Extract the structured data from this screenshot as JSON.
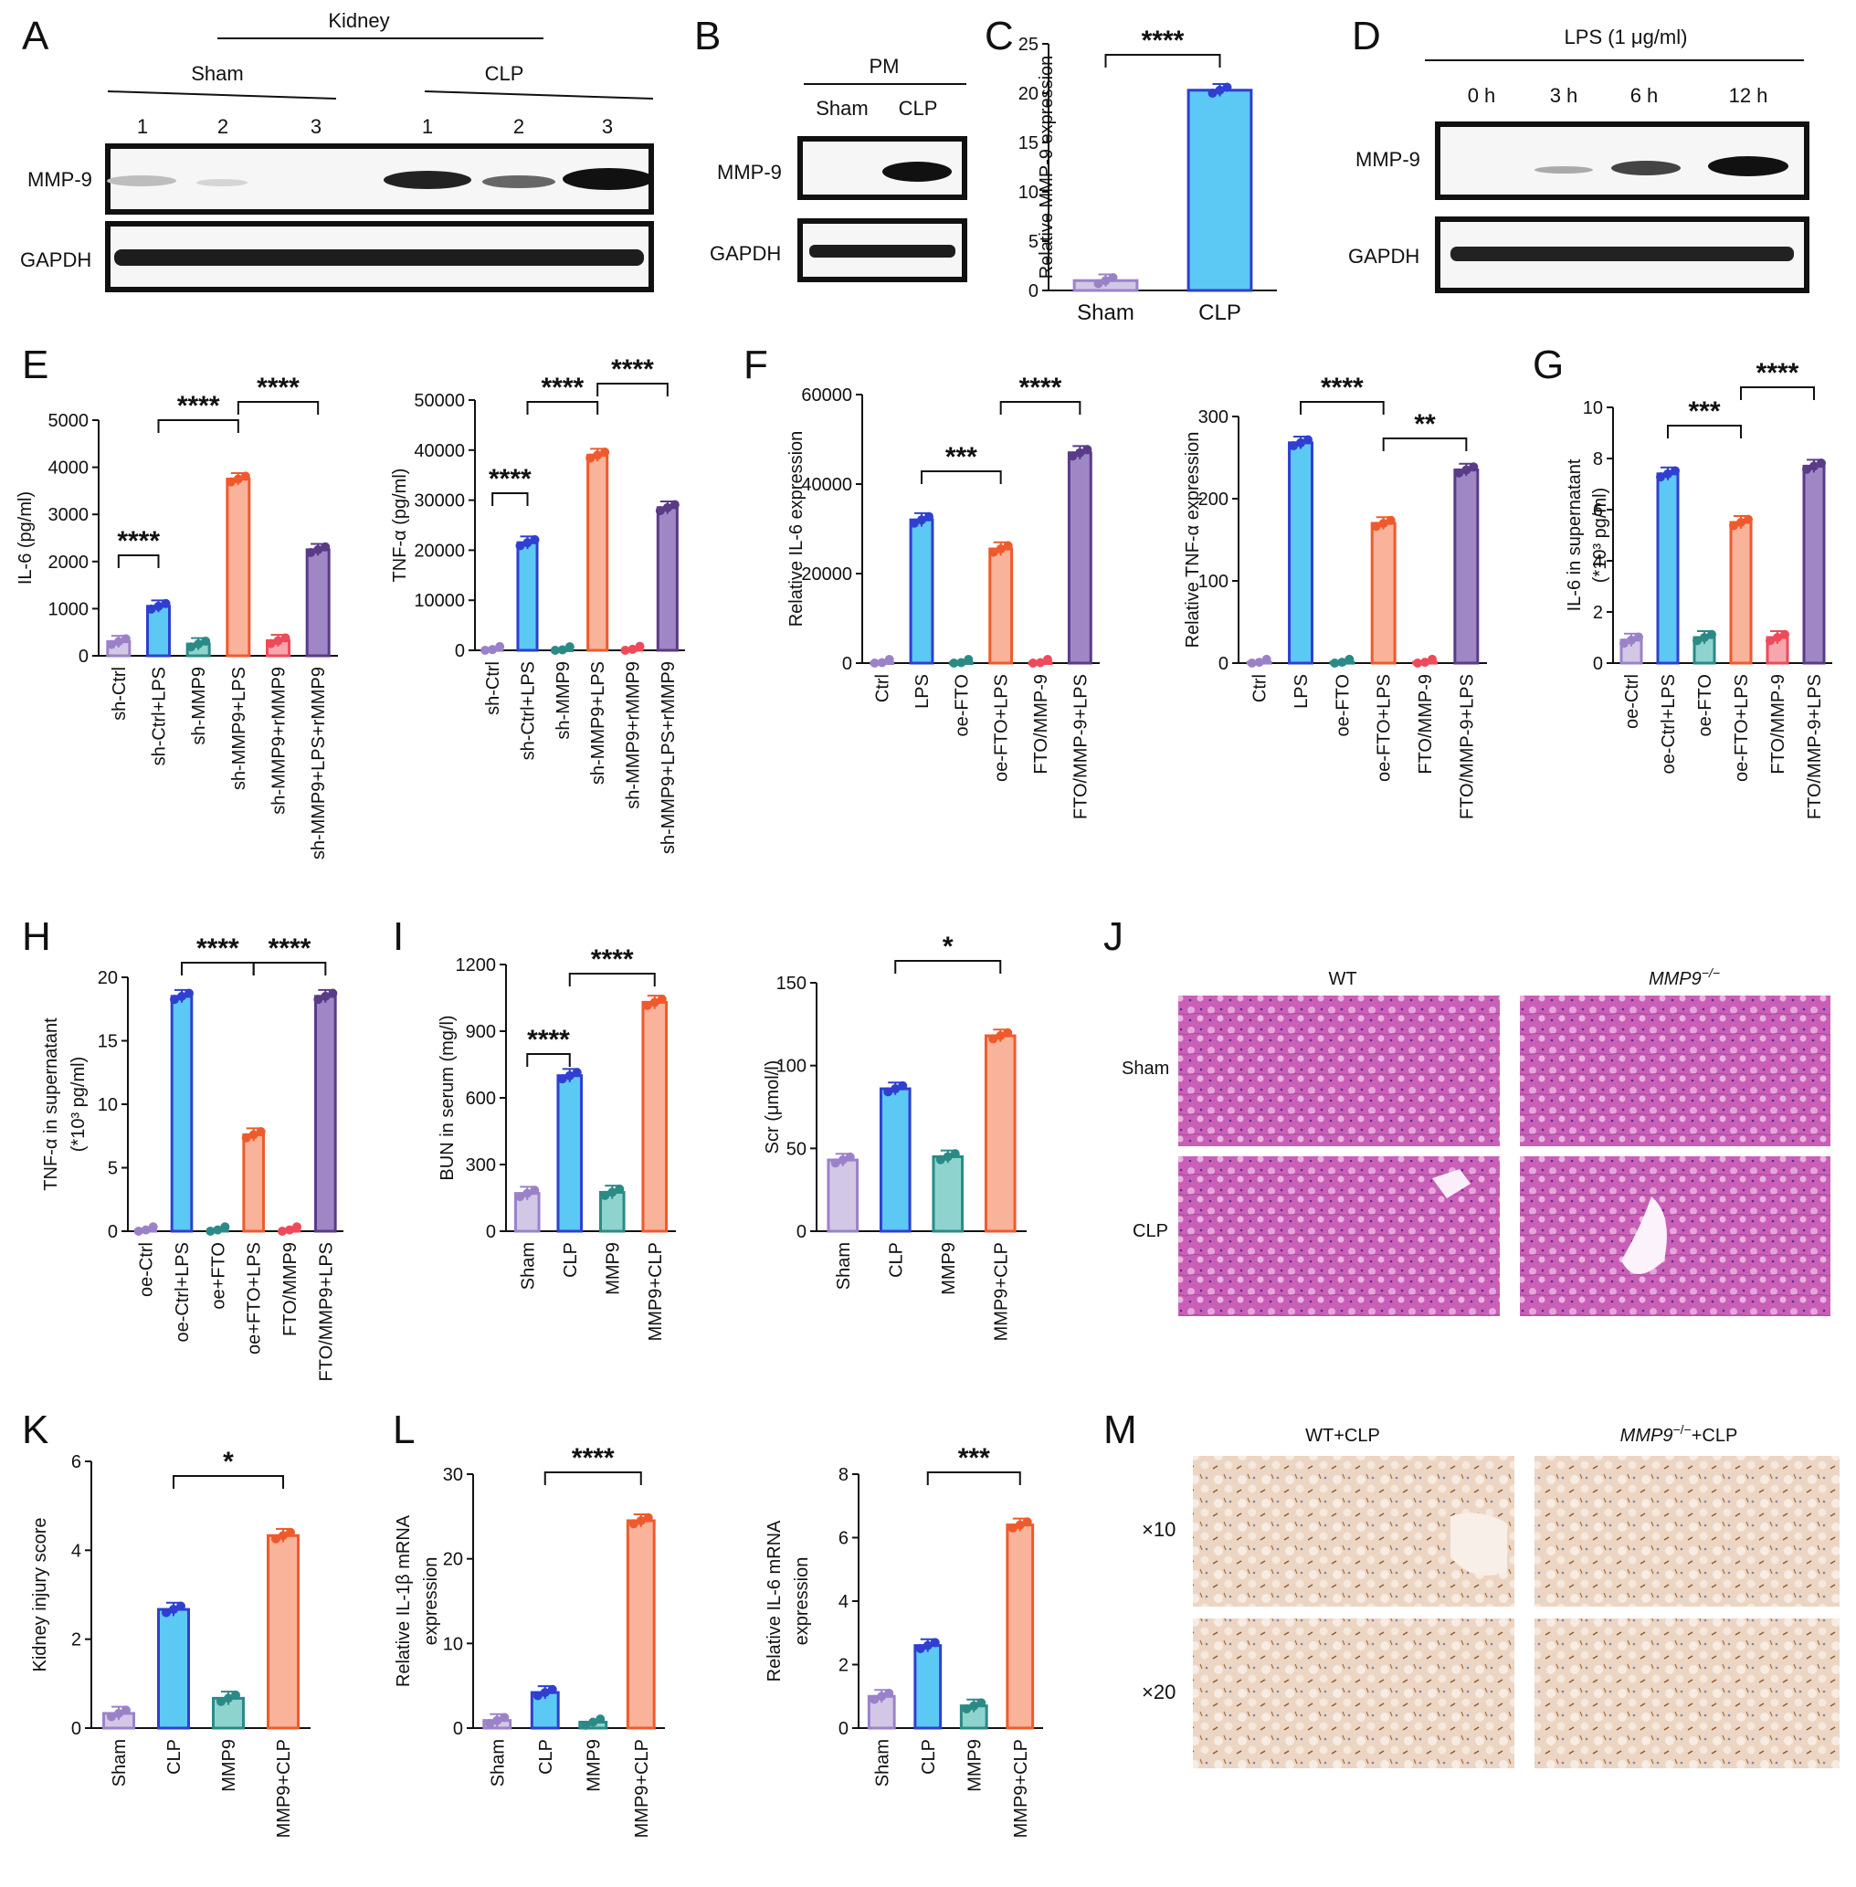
{
  "colors": {
    "purple": "#9b82c8",
    "purple_fill": "#d2c8e6",
    "blue": "#2f3fd0",
    "blue_fill": "#5cc8f4",
    "teal": "#2b8a86",
    "teal_fill": "#8fd3cf",
    "orange": "#ef5a2c",
    "orange_fill": "#f9b39b",
    "red": "#ef4a5a",
    "red_fill": "#f7a6ae",
    "violet": "#5a3b87",
    "violet_fill": "#9f87c6",
    "pink_tissue": "#c95fb7",
    "ihc_bg": "#ecd5c2"
  },
  "panels": {
    "A": "A",
    "B": "B",
    "C": "C",
    "D": "D",
    "E": "E",
    "F": "F",
    "G": "G",
    "H": "H",
    "I": "I",
    "J": "J",
    "K": "K",
    "L": "L",
    "M": "M"
  },
  "blots": {
    "A": {
      "header": "Kidney",
      "groups": [
        "Sham",
        "CLP"
      ],
      "lanes": [
        "1",
        "2",
        "3",
        "1",
        "2",
        "3"
      ],
      "rows": [
        "MMP-9",
        "GAPDH"
      ]
    },
    "B": {
      "header": "PM",
      "groups": [
        "Sham",
        "CLP"
      ],
      "rows": [
        "MMP-9",
        "GAPDH"
      ]
    },
    "D": {
      "header": "LPS (1 μg/ml)",
      "lanes": [
        "0 h",
        "3 h",
        "6 h",
        "12 h"
      ],
      "rows": [
        "MMP-9",
        "GAPDH"
      ]
    }
  },
  "histology": {
    "J": {
      "columns": [
        "WT",
        "MMP9"
      ],
      "col_sup": "−/−",
      "rows": [
        "Sham",
        "CLP"
      ]
    },
    "M": {
      "columns": [
        "WT+CLP",
        "MMP9",
        "+CLP"
      ],
      "col_sup": "−/−",
      "rows": [
        "×10",
        "×20"
      ]
    }
  },
  "chart_data": [
    {
      "id": "C",
      "type": "bar",
      "categories": [
        "Sham",
        "CLP"
      ],
      "values": [
        1,
        20.3
      ],
      "ylim": [
        0,
        25
      ],
      "yticks": [
        0,
        5,
        10,
        15,
        20,
        25
      ],
      "ylabel": "Relative MMP-9 expression",
      "sig": [
        "****"
      ]
    },
    {
      "id": "E1",
      "type": "bar",
      "categories": [
        "sh-Ctrl",
        "sh-Ctrl+LPS",
        "sh-MMP9",
        "sh-MMP9+LPS",
        "sh-MMP9+rMMP9",
        "sh-MMP9+LPS+rMMP9"
      ],
      "values": [
        300,
        1050,
        250,
        3750,
        320,
        2250
      ],
      "ylim": [
        0,
        5000
      ],
      "yticks": [
        0,
        1000,
        2000,
        3000,
        4000,
        5000
      ],
      "ylabel": "IL-6 (pg/ml)",
      "sig": [
        "****",
        "****",
        "****"
      ]
    },
    {
      "id": "E2",
      "type": "bar",
      "categories": [
        "sh-Ctrl",
        "sh-Ctrl+LPS",
        "sh-MMP9",
        "sh-MMP9+LPS",
        "sh-MMP9+rMMP9",
        "sh-MMP9+LPS+rMMP9"
      ],
      "values": [
        150,
        21500,
        100,
        39000,
        200,
        28500
      ],
      "ylim": [
        0,
        50000
      ],
      "yticks": [
        0,
        10000,
        20000,
        30000,
        40000,
        50000
      ],
      "ylabel": "TNF-α (pg/ml)",
      "sig": [
        "****",
        "****",
        "****"
      ]
    },
    {
      "id": "F1",
      "type": "bar",
      "categories": [
        "Ctrl",
        "LPS",
        "oe-FTO",
        "oe-FTO+LPS",
        "FTO/MMP-9",
        "FTO/MMP-9+LPS"
      ],
      "values": [
        100,
        32000,
        100,
        25500,
        100,
        47000
      ],
      "ylim": [
        0,
        60000
      ],
      "yticks": [
        0,
        20000,
        40000,
        60000
      ],
      "ylabel": "Relative IL-6 expression",
      "sig": [
        "***",
        "****"
      ]
    },
    {
      "id": "F2",
      "type": "bar",
      "categories": [
        "Ctrl",
        "LPS",
        "oe-FTO",
        "oe-FTO+LPS",
        "FTO/MMP-9",
        "FTO/MMP-9+LPS"
      ],
      "values": [
        1,
        268,
        1,
        170,
        1,
        235
      ],
      "ylim": [
        0,
        300
      ],
      "yticks": [
        0,
        100,
        200,
        300
      ],
      "ylabel": "Relative TNF-α expression",
      "sig": [
        "****",
        "**"
      ]
    },
    {
      "id": "G",
      "type": "bar",
      "categories": [
        "oe-Ctrl",
        "oe-Ctrl+LPS",
        "oe-FTO",
        "oe-FTO+LPS",
        "FTO/MMP-9",
        "FTO/MMP-9+LPS"
      ],
      "values": [
        0.9,
        7.4,
        1.0,
        5.5,
        1.0,
        7.7
      ],
      "ylim": [
        0,
        10
      ],
      "yticks": [
        0,
        2,
        4,
        6,
        8,
        10
      ],
      "ylabel": "IL-6 in supernatant",
      "ylabel2": "(*10³ pg/ml)",
      "sig": [
        "***",
        "****"
      ]
    },
    {
      "id": "H",
      "type": "bar",
      "categories": [
        "oe-Ctrl",
        "oe-Ctrl+LPS",
        "oe+FTO",
        "oe+FTO+LPS",
        "FTO/MMP9",
        "FTO/MMP9+LPS"
      ],
      "values": [
        0.1,
        18.5,
        0.1,
        7.6,
        0.1,
        18.5
      ],
      "ylim": [
        0,
        20
      ],
      "yticks": [
        0,
        5,
        10,
        15,
        20
      ],
      "ylabel": "TNF-α in supernatant",
      "ylabel2": "(*10³ pg/ml)",
      "sig": [
        "****",
        "****"
      ]
    },
    {
      "id": "I1",
      "type": "bar",
      "categories": [
        "Sham",
        "CLP",
        "MMP9",
        "MMP9+CLP"
      ],
      "values": [
        170,
        700,
        175,
        1030
      ],
      "ylim": [
        0,
        1200
      ],
      "yticks": [
        0,
        300,
        600,
        900,
        1200
      ],
      "ylabel": "BUN in serum (mg/l)",
      "sig": [
        "****",
        "****"
      ]
    },
    {
      "id": "I2",
      "type": "bar",
      "categories": [
        "Sham",
        "CLP",
        "MMP9",
        "MMP9+CLP"
      ],
      "values": [
        43,
        86,
        45,
        118
      ],
      "ylim": [
        0,
        150
      ],
      "yticks": [
        0,
        50,
        100,
        150
      ],
      "ylabel": "Scr (μmol/l)",
      "sig": [
        "*"
      ]
    },
    {
      "id": "K",
      "type": "bar",
      "categories": [
        "Sham",
        "CLP",
        "MMP9",
        "MMP9+CLP"
      ],
      "values": [
        0.33,
        2.67,
        0.67,
        4.33
      ],
      "ylim": [
        0,
        6
      ],
      "yticks": [
        0,
        2,
        4,
        6
      ],
      "ylabel": "Kidney injury score",
      "sig": [
        "*"
      ]
    },
    {
      "id": "L1",
      "type": "bar",
      "categories": [
        "Sham",
        "CLP",
        "MMP9",
        "MMP9+CLP"
      ],
      "values": [
        0.9,
        4.2,
        0.7,
        24.5
      ],
      "ylim": [
        0,
        30
      ],
      "yticks": [
        0,
        10,
        20,
        30
      ],
      "ylabel": "Relative IL-1β mRNA",
      "ylabel2": "expression",
      "sig": [
        "****"
      ]
    },
    {
      "id": "L2",
      "type": "bar",
      "categories": [
        "Sham",
        "CLP",
        "MMP9",
        "MMP9+CLP"
      ],
      "values": [
        1.0,
        2.6,
        0.7,
        6.4
      ],
      "ylim": [
        0,
        8
      ],
      "yticks": [
        0,
        2,
        4,
        6,
        8
      ],
      "ylabel": "Relative IL-6 mRNA",
      "ylabel2": "expression",
      "sig": [
        "***"
      ]
    }
  ]
}
